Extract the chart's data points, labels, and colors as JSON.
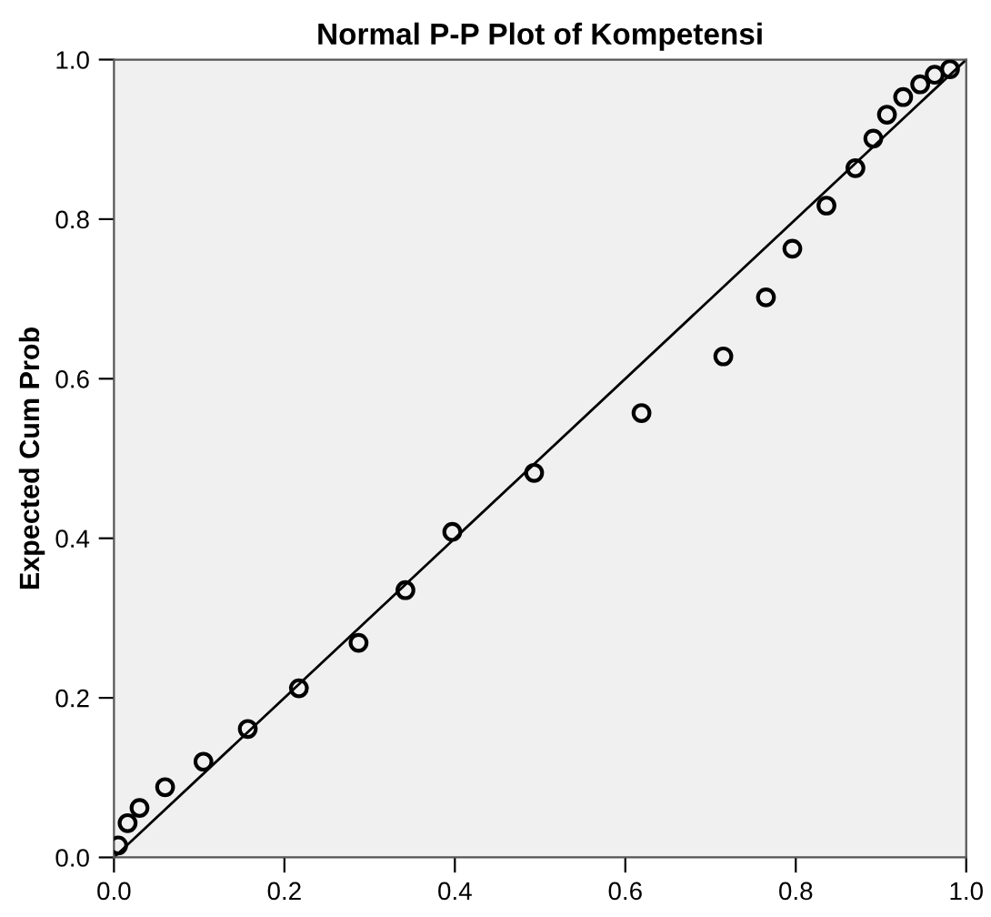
{
  "chart_data": {
    "type": "scatter",
    "title": "Normal P-P Plot of Kompetensi",
    "ylabel": "Expected Cum Prob",
    "xlim": [
      0,
      1
    ],
    "ylim": [
      0,
      1
    ],
    "xticks": [
      {
        "value": 0,
        "label": "0.0"
      },
      {
        "value": 0.2,
        "label": "0.2"
      },
      {
        "value": 0.4,
        "label": "0.4"
      },
      {
        "value": 0.6,
        "label": "0.6"
      },
      {
        "value": 0.8,
        "label": "0.8"
      },
      {
        "value": 1,
        "label": "1.0"
      }
    ],
    "yticks": [
      {
        "value": 0,
        "label": "0.0"
      },
      {
        "value": 0.2,
        "label": "0.2"
      },
      {
        "value": 0.4,
        "label": "0.4"
      },
      {
        "value": 0.6,
        "label": "0.6"
      },
      {
        "value": 0.8,
        "label": "0.8"
      },
      {
        "value": 1,
        "label": "1.0"
      }
    ],
    "grid": false,
    "series": [
      {
        "marker": "circle",
        "color": "#000000",
        "x": [
          0.005,
          0.016,
          0.03,
          0.06,
          0.105,
          0.157,
          0.217,
          0.287,
          0.342,
          0.397,
          0.493,
          0.619,
          0.715,
          0.765,
          0.796,
          0.836,
          0.87,
          0.891,
          0.907,
          0.926,
          0.946,
          0.963,
          0.981
        ],
        "values": [
          0.015,
          0.043,
          0.062,
          0.088,
          0.12,
          0.161,
          0.212,
          0.269,
          0.335,
          0.408,
          0.482,
          0.557,
          0.628,
          0.702,
          0.763,
          0.817,
          0.864,
          0.901,
          0.931,
          0.953,
          0.969,
          0.981,
          0.988
        ]
      },
      {
        "type": "line",
        "marker": "none",
        "color": "#000000",
        "x": [
          0,
          1
        ],
        "values": [
          0,
          1
        ]
      }
    ]
  }
}
